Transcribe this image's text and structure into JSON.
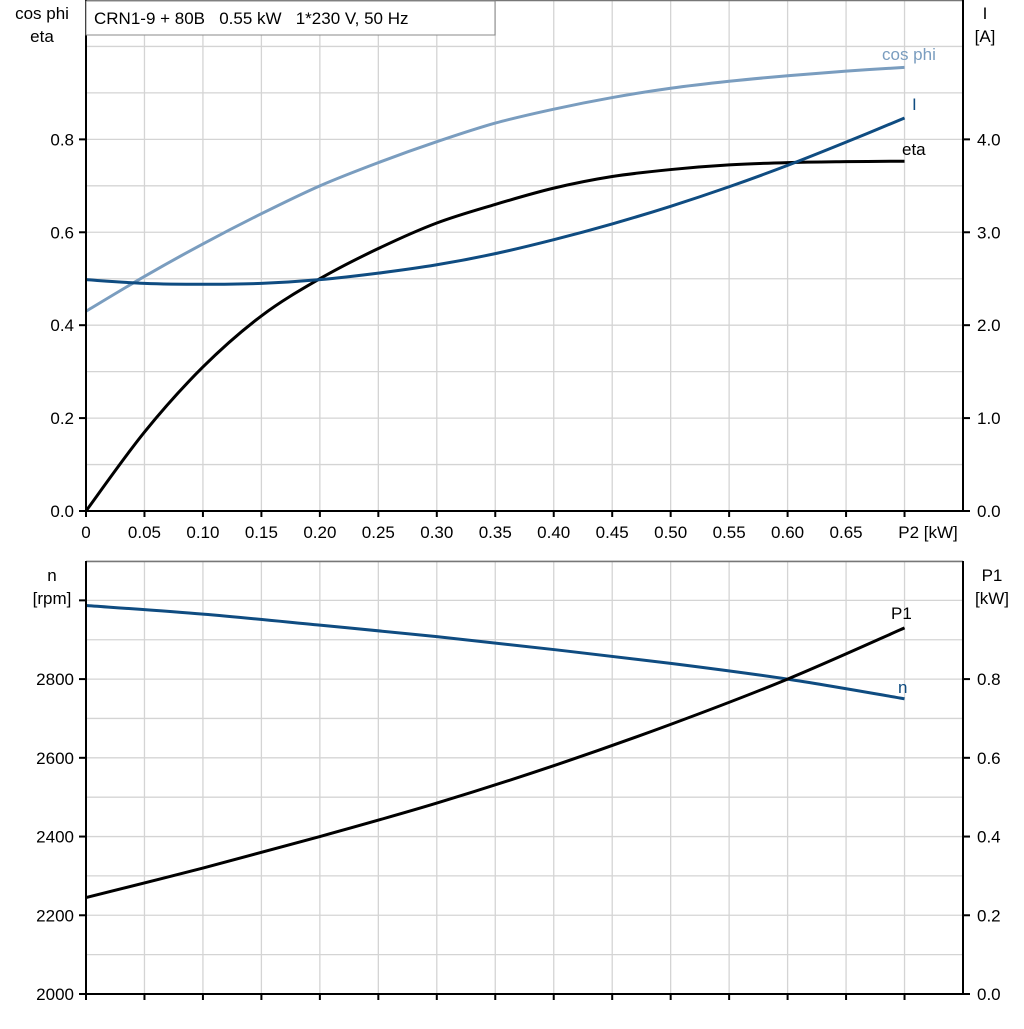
{
  "chart_data": [
    {
      "type": "line",
      "title": "CRN1-9 + 80B   0.55 kW   1*230 V, 50 Hz",
      "xlabel": "P2 [kW]",
      "ylabel_left": [
        "cos phi",
        "eta"
      ],
      "ylabel_right": [
        "I",
        "[A]"
      ],
      "xlim": [
        0,
        0.75
      ],
      "ylim_left": [
        0,
        1.1
      ],
      "ylim_right": [
        0,
        5.5
      ],
      "x_ticks": [
        "0",
        "0.05",
        "0.10",
        "0.15",
        "0.20",
        "0.25",
        "0.30",
        "0.35",
        "0.40",
        "0.45",
        "0.50",
        "0.55",
        "0.60",
        "0.65"
      ],
      "y_ticks_left": [
        "0.0",
        "0.2",
        "0.4",
        "0.6",
        "0.8"
      ],
      "y_ticks_right": [
        "0.0",
        "1.0",
        "2.0",
        "3.0",
        "4.0"
      ],
      "grid": true,
      "x": [
        0,
        0.05,
        0.1,
        0.15,
        0.2,
        0.25,
        0.3,
        0.35,
        0.4,
        0.45,
        0.5,
        0.55,
        0.6,
        0.65,
        0.7
      ],
      "series": [
        {
          "name": "cos phi",
          "axis": "left",
          "color": "#7a9dbf",
          "values": [
            0.43,
            0.505,
            0.575,
            0.64,
            0.7,
            0.75,
            0.795,
            0.835,
            0.865,
            0.89,
            0.91,
            0.925,
            0.937,
            0.947,
            0.955
          ]
        },
        {
          "name": "eta",
          "axis": "left",
          "color": "#000000",
          "values": [
            0.0,
            0.17,
            0.31,
            0.42,
            0.5,
            0.565,
            0.62,
            0.66,
            0.695,
            0.72,
            0.735,
            0.745,
            0.75,
            0.752,
            0.753
          ]
        },
        {
          "name": "I",
          "axis": "right",
          "color": "#0f4c81",
          "values": [
            2.49,
            2.45,
            2.44,
            2.45,
            2.49,
            2.56,
            2.65,
            2.77,
            2.92,
            3.09,
            3.28,
            3.49,
            3.72,
            3.97,
            4.23
          ]
        }
      ]
    },
    {
      "type": "line",
      "ylabel_left": [
        "n",
        "[rpm]"
      ],
      "ylabel_right": [
        "P1",
        "[kW]"
      ],
      "xlim": [
        0,
        0.75
      ],
      "ylim_left": [
        2000,
        3100
      ],
      "ylim_right": [
        0,
        1.1
      ],
      "y_ticks_left": [
        "2000",
        "2200",
        "2400",
        "2600",
        "2800"
      ],
      "y_ticks_right": [
        "0.0",
        "0.2",
        "0.4",
        "0.6",
        "0.8"
      ],
      "grid": true,
      "x": [
        0,
        0.1,
        0.2,
        0.3,
        0.4,
        0.5,
        0.6,
        0.7
      ],
      "series": [
        {
          "name": "n",
          "axis": "left",
          "color": "#0f4c81",
          "values": [
            2987,
            2965,
            2937,
            2908,
            2875,
            2840,
            2800,
            2750
          ]
        },
        {
          "name": "P1",
          "axis": "right",
          "color": "#000000",
          "values": [
            0.245,
            0.32,
            0.4,
            0.485,
            0.58,
            0.685,
            0.8,
            0.93
          ]
        }
      ]
    }
  ]
}
